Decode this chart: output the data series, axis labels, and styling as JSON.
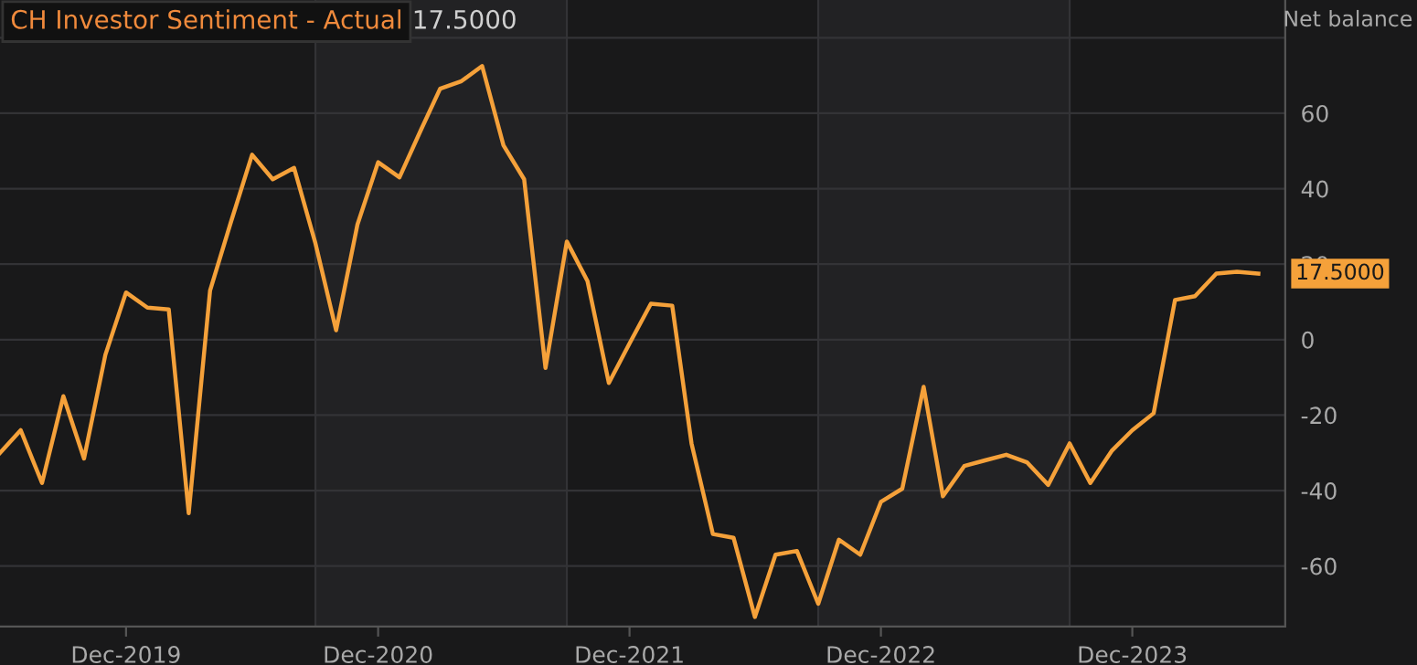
{
  "chart_data": {
    "type": "line",
    "title": "CH Investor Sentiment - Actual",
    "subtitle": "17.5000",
    "ylabel": "Net balance",
    "x": [
      "2019-06",
      "2019-07",
      "2019-08",
      "2019-09",
      "2019-10",
      "2019-11",
      "2019-12",
      "2020-01",
      "2020-02",
      "2020-03",
      "2020-04",
      "2020-05",
      "2020-06",
      "2020-07",
      "2020-08",
      "2020-09",
      "2020-10",
      "2020-11",
      "2020-12",
      "2021-01",
      "2021-02",
      "2021-03",
      "2021-04",
      "2021-05",
      "2021-06",
      "2021-07",
      "2021-08",
      "2021-09",
      "2021-10",
      "2021-11",
      "2021-12",
      "2022-01",
      "2022-02",
      "2022-03",
      "2022-04",
      "2022-05",
      "2022-06",
      "2022-07",
      "2022-08",
      "2022-09",
      "2022-10",
      "2022-11",
      "2022-12",
      "2023-01",
      "2023-02",
      "2023-03",
      "2023-04",
      "2023-05",
      "2023-06",
      "2023-07",
      "2023-08",
      "2023-09",
      "2023-10",
      "2023-11",
      "2023-12",
      "2024-01",
      "2024-02",
      "2024-03",
      "2024-04",
      "2024-05",
      "2024-06"
    ],
    "series": [
      {
        "color": "#f5a13a",
        "values": [
          -30,
          -24,
          -38,
          -15,
          -31.5,
          -4,
          12.5,
          8.5,
          8,
          -46,
          13,
          31,
          49,
          42.5,
          45.5,
          25.5,
          2.5,
          30.5,
          47,
          43,
          55.5,
          66.5,
          68.5,
          72.5,
          51.5,
          42.5,
          -7.5,
          26,
          15.5,
          -11.5,
          -1,
          9.5,
          9,
          -27.5,
          -51.5,
          -52.5,
          -73.5,
          -57,
          -56,
          -70,
          -53,
          -57,
          -43,
          -39.5,
          -12.5,
          -41.5,
          -33.5,
          -32,
          -30.5,
          -32.5,
          -38.5,
          -27.5,
          -38,
          -29.5,
          -24,
          -19.5,
          10.5,
          11.5,
          17.5,
          18,
          17.5
        ]
      }
    ],
    "annotations": [
      {
        "text": "17.5000",
        "x": "2024-06",
        "y": 17.5
      }
    ],
    "xlim": [
      "2019-06-01",
      "2024-07-10"
    ],
    "xticks": [
      {
        "value": "2019-12",
        "label": "Dec-2019"
      },
      {
        "value": "2020-12",
        "label": "Dec-2020"
      },
      {
        "value": "2021-12",
        "label": "Dec-2021"
      },
      {
        "value": "2022-12",
        "label": "Dec-2022"
      },
      {
        "value": "2023-12",
        "label": "Dec-2023"
      }
    ],
    "ylim": [
      -76,
      90
    ],
    "yticks": [
      -60,
      -40,
      -20,
      0,
      20,
      40,
      60,
      {
        "value": 80,
        "label": null
      }
    ],
    "bands": [
      {
        "axis": "x",
        "from": "2020-09",
        "to": "2021-09",
        "color": "#222224"
      },
      {
        "axis": "x",
        "from": "2022-09",
        "to": "2023-09",
        "color": "#222224"
      }
    ],
    "grid": "y",
    "legend": false,
    "marker": "none",
    "line_style": "solid"
  }
}
